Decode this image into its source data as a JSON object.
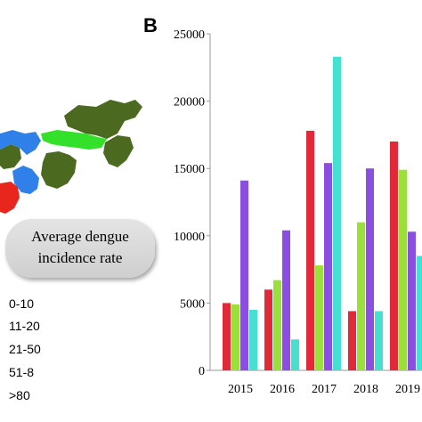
{
  "map": {
    "legend_title_line1": "Average dengue",
    "legend_title_line2": "incidence rate",
    "legend_items": [
      "0-10",
      "11-20",
      "21-50",
      "51-8",
      ">80"
    ],
    "region_colors": {
      "dark_green": "#4b6a1f",
      "bright_green": "#33e02a",
      "blue": "#2f80e8",
      "red": "#e8261d"
    }
  },
  "chart_data": {
    "type": "bar",
    "panel_label": "B",
    "categories": [
      "2015",
      "2016",
      "2017",
      "2018",
      "2019"
    ],
    "series": [
      {
        "values": [
          5000,
          6000,
          17800,
          4400,
          17000
        ],
        "color": "#e02a3c"
      },
      {
        "values": [
          4900,
          6700,
          7800,
          11000,
          14900
        ],
        "color": "#9be03a"
      },
      {
        "values": [
          14100,
          10400,
          15400,
          15000,
          10300
        ],
        "color": "#8a4fe0"
      },
      {
        "values": [
          4500,
          2300,
          23300,
          4400,
          8500
        ],
        "color": "#45e0d0"
      }
    ],
    "y_ticks": [
      "0",
      "5000",
      "10000",
      "15000",
      "20000",
      "25000"
    ],
    "ylim": [
      0,
      25000
    ],
    "grid": false
  }
}
